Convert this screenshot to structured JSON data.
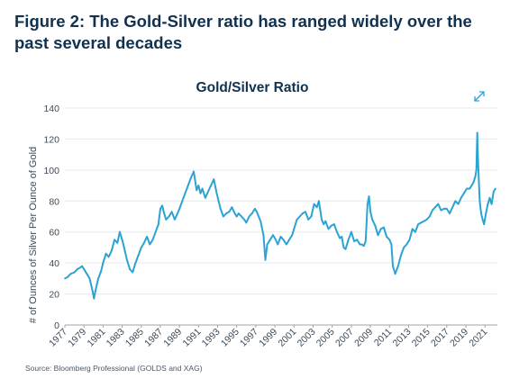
{
  "figure": {
    "title": "Figure 2: The Gold-Silver ratio has ranged widely over the past several decades",
    "source": "Source: Bloomberg Professional (GOLDS and XAG)"
  },
  "colors": {
    "line": "#2ba3d3",
    "grid": "#e6e9ec",
    "axis": "#9aa5ae"
  },
  "icons": {
    "expand": "expand-arrows-icon"
  },
  "chart_data": {
    "type": "line",
    "title": "Gold/Silver Ratio",
    "xlabel": "",
    "ylabel": "# of Ounces of Silver Per Ounce of Gold",
    "ylim": [
      0,
      140
    ],
    "xlim": [
      1977,
      2022.3
    ],
    "yticks": [
      0,
      20,
      40,
      60,
      80,
      100,
      120,
      140
    ],
    "xticks": [
      "1977",
      "1979",
      "1981",
      "1983",
      "1985",
      "1987",
      "1989",
      "1991",
      "1993",
      "1995",
      "1997",
      "1999",
      "2001",
      "2003",
      "2005",
      "2007",
      "2009",
      "2011",
      "2013",
      "2015",
      "2017",
      "2019",
      "2021"
    ],
    "grid": true,
    "legend": "none",
    "series": [
      {
        "name": "",
        "x": [
          1977.0,
          1977.3,
          1977.6,
          1978.0,
          1978.3,
          1978.6,
          1978.8,
          1979.0,
          1979.3,
          1979.6,
          1979.9,
          1980.05,
          1980.2,
          1980.5,
          1980.8,
          1981.0,
          1981.3,
          1981.6,
          1981.9,
          1982.2,
          1982.5,
          1982.75,
          1983.0,
          1983.2,
          1983.5,
          1983.8,
          1984.1,
          1984.4,
          1984.7,
          1985.0,
          1985.3,
          1985.6,
          1985.9,
          1986.2,
          1986.5,
          1986.8,
          1987.0,
          1987.2,
          1987.4,
          1987.6,
          1987.9,
          1988.2,
          1988.5,
          1988.8,
          1989.0,
          1989.3,
          1989.6,
          1989.9,
          1990.2,
          1990.5,
          1990.8,
          1991.0,
          1991.2,
          1991.4,
          1991.7,
          1992.0,
          1992.3,
          1992.6,
          1992.9,
          1993.1,
          1993.3,
          1993.6,
          1993.9,
          1994.2,
          1994.5,
          1994.8,
          1995.0,
          1995.2,
          1995.5,
          1995.8,
          1996.0,
          1996.3,
          1996.6,
          1996.9,
          1997.1,
          1997.3,
          1997.5,
          1997.8,
          1998.0,
          1998.2,
          1998.5,
          1998.8,
          1999.0,
          1999.3,
          1999.6,
          1999.9,
          2000.2,
          2000.5,
          2000.8,
          2001.0,
          2001.3,
          2001.6,
          2001.9,
          2002.2,
          2002.5,
          2002.8,
          2003.1,
          2003.4,
          2003.6,
          2003.9,
          2004.1,
          2004.3,
          2004.6,
          2004.9,
          2005.2,
          2005.5,
          2005.8,
          2006.0,
          2006.2,
          2006.4,
          2006.7,
          2007.0,
          2007.3,
          2007.6,
          2007.9,
          2008.1,
          2008.3,
          2008.5,
          2008.7,
          2008.85,
          2009.0,
          2009.2,
          2009.5,
          2009.8,
          2010.1,
          2010.4,
          2010.7,
          2011.0,
          2011.2,
          2011.35,
          2011.6,
          2011.9,
          2012.2,
          2012.5,
          2012.8,
          2013.1,
          2013.4,
          2013.7,
          2014.0,
          2014.3,
          2014.6,
          2014.9,
          2015.2,
          2015.5,
          2015.8,
          2016.1,
          2016.4,
          2016.7,
          2017.0,
          2017.3,
          2017.6,
          2017.9,
          2018.2,
          2018.5,
          2018.8,
          2019.1,
          2019.4,
          2019.6,
          2019.8,
          2020.0,
          2020.1,
          2020.2,
          2020.25,
          2020.3,
          2020.45,
          2020.6,
          2020.75,
          2020.9,
          2021.1,
          2021.3,
          2021.5,
          2021.7,
          2021.9,
          2022.1
        ],
        "y": [
          30,
          31,
          33,
          34,
          36,
          37,
          38,
          36,
          33,
          30,
          22,
          17,
          22,
          30,
          35,
          40,
          46,
          44,
          48,
          55,
          53,
          60,
          55,
          50,
          42,
          36,
          34,
          40,
          45,
          50,
          53,
          57,
          52,
          55,
          60,
          65,
          75,
          77,
          72,
          68,
          70,
          73,
          68,
          72,
          75,
          80,
          85,
          90,
          95,
          99,
          87,
          90,
          85,
          88,
          82,
          86,
          90,
          94,
          85,
          80,
          75,
          70,
          72,
          73,
          76,
          72,
          70,
          72,
          70,
          68,
          66,
          70,
          72,
          75,
          73,
          70,
          67,
          58,
          42,
          52,
          55,
          58,
          56,
          52,
          57,
          55,
          52,
          55,
          58,
          62,
          68,
          70,
          72,
          73,
          68,
          70,
          78,
          76,
          80,
          68,
          65,
          67,
          62,
          64,
          65,
          60,
          56,
          57,
          50,
          49,
          55,
          60,
          54,
          55,
          52,
          52,
          51,
          54,
          78,
          83,
          73,
          68,
          64,
          58,
          62,
          63,
          57,
          55,
          52,
          38,
          33,
          38,
          45,
          50,
          52,
          55,
          62,
          60,
          65,
          66,
          67,
          68,
          70,
          74,
          76,
          78,
          74,
          75,
          75,
          72,
          76,
          80,
          78,
          82,
          85,
          88,
          88,
          90,
          92,
          96,
          100,
          124,
          110,
          102,
          80,
          72,
          68,
          65,
          72,
          78,
          82,
          78,
          86,
          88
        ],
        "color": "#2ba3d3"
      }
    ]
  }
}
